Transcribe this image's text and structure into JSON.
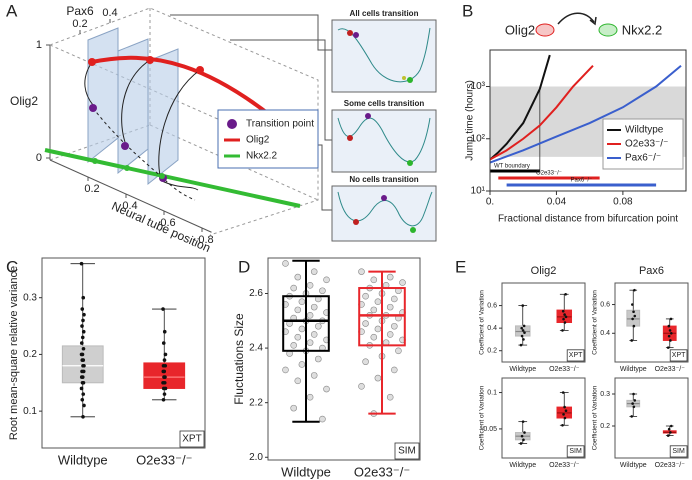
{
  "diagram": {
    "label": "A",
    "pax6_axis": {
      "title": "Pax6",
      "ticks": [
        0.2,
        0.4
      ]
    },
    "olig2_axis": {
      "title": "Olig2",
      "ticks": [
        0,
        1
      ]
    },
    "position_axis": {
      "title": "Neural tube position",
      "ticks": [
        0.2,
        0.4,
        0.6,
        0.8
      ]
    },
    "legend": [
      {
        "name": "Transition point",
        "color": "#6a1b8a"
      },
      {
        "name": "Olig2",
        "color": "#e0201f"
      },
      {
        "name": "Nkx2.2",
        "color": "#33bb33"
      }
    ],
    "insets": [
      "All cells transition",
      "Some cells transition",
      "No cells transition"
    ]
  },
  "chart_data": [
    {
      "type": "line",
      "label": "B",
      "header": {
        "from": "Olig2",
        "from_color": "#e0201f",
        "to": "Nkx2.2",
        "to_color": "#2db52d"
      },
      "xlabel": "Fractional distance from bifurcation point",
      "ylabel": "Jump time (hours)",
      "yscale": "log",
      "xlim": [
        0,
        0.118
      ],
      "ylim": [
        10,
        5000
      ],
      "xticks": [
        {
          "value": 0,
          "label": "0."
        },
        0.04,
        0.08
      ],
      "yticks": [
        {
          "value": 10,
          "label": "10¹"
        },
        {
          "value": 100,
          "label": "10²"
        },
        {
          "value": 1000,
          "label": "10³"
        }
      ],
      "band": [
        45,
        1000
      ],
      "band_color": "#d9d9d9",
      "legend": "lower right",
      "series": [
        {
          "name": "Wildtype",
          "color": "#111111",
          "x": [
            0,
            0.005,
            0.01,
            0.02,
            0.03,
            0.036
          ],
          "values": [
            40,
            55,
            80,
            200,
            900,
            4000
          ]
        },
        {
          "name": "O2e33⁻/⁻",
          "color": "#e0201f",
          "x": [
            0,
            0.01,
            0.02,
            0.03,
            0.04,
            0.05,
            0.062
          ],
          "values": [
            40,
            60,
            100,
            180,
            400,
            1000,
            2500
          ]
        },
        {
          "name": "Pax6⁻/⁻",
          "color": "#3a5fcd",
          "x": [
            0,
            0.02,
            0.04,
            0.06,
            0.08,
            0.1,
            0.115
          ],
          "values": [
            35,
            60,
            110,
            200,
            400,
            1000,
            2500
          ]
        }
      ],
      "ranges": [
        {
          "label": "WT boundary",
          "color": "#000000",
          "range": [
            0,
            0.03
          ]
        },
        {
          "label": "O2e33⁻/⁻",
          "color": "#e0201f",
          "range": [
            0.005,
            0.066
          ]
        },
        {
          "label": "Pax6⁻/⁻",
          "color": "#3a5fcd",
          "range": [
            0.01,
            0.1
          ]
        }
      ]
    },
    {
      "type": "box",
      "label": "C",
      "ylabel": "Root mean-square relative variance",
      "tag": "XPT",
      "ylim": [
        0.035,
        0.37
      ],
      "yticks": [
        0.1,
        0.2,
        0.3
      ],
      "categories": [
        "Wildtype",
        "O2e33⁻/⁻"
      ],
      "boxes": [
        {
          "min": 0.09,
          "q1": 0.15,
          "median": 0.18,
          "q3": 0.215,
          "max": 0.36,
          "color": "#bbbbbb",
          "fill": "#cfcfcf",
          "median_color": "#ffffff",
          "points": [
            0.36,
            0.3,
            0.28,
            0.27,
            0.26,
            0.25,
            0.24,
            0.23,
            0.22,
            0.21,
            0.2,
            0.2,
            0.19,
            0.19,
            0.18,
            0.18,
            0.17,
            0.17,
            0.16,
            0.16,
            0.15,
            0.15,
            0.14,
            0.13,
            0.12,
            0.11,
            0.09
          ]
        },
        {
          "min": 0.12,
          "q1": 0.14,
          "median": 0.16,
          "q3": 0.185,
          "max": 0.28,
          "color": "#e8262b",
          "fill": "#e8262b",
          "median_color": "#ff8080",
          "points": [
            0.28,
            0.24,
            0.22,
            0.2,
            0.19,
            0.18,
            0.18,
            0.17,
            0.17,
            0.16,
            0.16,
            0.15,
            0.15,
            0.14,
            0.14,
            0.13,
            0.12
          ]
        }
      ]
    },
    {
      "type": "box",
      "label": "D",
      "ylabel": "Fluctuations Size",
      "tag": "SIM",
      "ylim": [
        1.99,
        2.73
      ],
      "yticks": [
        {
          "value": 2,
          "label": "2.0"
        },
        2.2,
        2.4,
        2.6
      ],
      "categories": [
        "Wildtype",
        "O2e33⁻/⁻"
      ],
      "boxes": [
        {
          "min": 2.13,
          "q1": 2.39,
          "median": 2.5,
          "q3": 2.59,
          "max": 2.72,
          "color": "#000000",
          "fill": "none",
          "median_color": "#000000",
          "points": [
            2.71,
            2.68,
            2.66,
            2.65,
            2.63,
            2.62,
            2.61,
            2.6,
            2.59,
            2.58,
            2.57,
            2.56,
            2.55,
            2.54,
            2.53,
            2.52,
            2.51,
            2.5,
            2.5,
            2.49,
            2.48,
            2.47,
            2.46,
            2.45,
            2.44,
            2.43,
            2.42,
            2.41,
            2.4,
            2.39,
            2.38,
            2.36,
            2.34,
            2.32,
            2.3,
            2.28,
            2.25,
            2.22,
            2.18,
            2.14
          ]
        },
        {
          "min": 2.16,
          "q1": 2.41,
          "median": 2.52,
          "q3": 2.62,
          "max": 2.68,
          "color": "#e8262b",
          "fill": "none",
          "median_color": "#e8262b",
          "points": [
            2.68,
            2.66,
            2.65,
            2.64,
            2.63,
            2.62,
            2.61,
            2.6,
            2.59,
            2.58,
            2.57,
            2.56,
            2.55,
            2.54,
            2.53,
            2.52,
            2.52,
            2.51,
            2.5,
            2.49,
            2.48,
            2.47,
            2.46,
            2.45,
            2.44,
            2.43,
            2.42,
            2.41,
            2.39,
            2.37,
            2.35,
            2.32,
            2.29,
            2.26,
            2.22,
            2.16
          ]
        }
      ]
    },
    {
      "type": "box",
      "label": "E",
      "title": "Olig2",
      "title_color": "#e0201f",
      "ylabel": "Coefficient of Variation",
      "tag": "XPT",
      "ylim": [
        0.1,
        0.8
      ],
      "yticks": [
        0.2,
        0.4,
        0.6
      ],
      "categories": [
        "Wildtype",
        "O2e33⁻/⁻"
      ],
      "boxes": [
        {
          "min": 0.25,
          "q1": 0.33,
          "median": 0.37,
          "q3": 0.42,
          "max": 0.6,
          "color": "#bbbbbb",
          "fill": "#c8c8c8",
          "median_color": "#888888",
          "points": [
            0.25,
            0.3,
            0.33,
            0.36,
            0.38,
            0.4,
            0.42,
            0.6
          ]
        },
        {
          "min": 0.38,
          "q1": 0.45,
          "median": 0.5,
          "q3": 0.56,
          "max": 0.7,
          "color": "#e8262b",
          "fill": "#e8262b",
          "median_color": "#a01010",
          "points": [
            0.38,
            0.45,
            0.48,
            0.5,
            0.52,
            0.55,
            0.7
          ]
        }
      ]
    },
    {
      "type": "box",
      "title": "Pax6",
      "title_color": "#3a5fcd",
      "ylabel": "Coefficient of Variation",
      "tag": "XPT",
      "ylim": [
        0.2,
        0.75
      ],
      "yticks": [
        0.4,
        0.6
      ],
      "categories": [
        "Wildtype",
        "O2e33⁻/⁻"
      ],
      "boxes": [
        {
          "min": 0.35,
          "q1": 0.45,
          "median": 0.5,
          "q3": 0.56,
          "max": 0.7,
          "color": "#bbbbbb",
          "fill": "#c8c8c8",
          "median_color": "#888888",
          "points": [
            0.35,
            0.45,
            0.5,
            0.52,
            0.55,
            0.6,
            0.7
          ]
        },
        {
          "min": 0.3,
          "q1": 0.35,
          "median": 0.4,
          "q3": 0.45,
          "max": 0.5,
          "color": "#e8262b",
          "fill": "#e8262b",
          "median_color": "#a01010",
          "points": [
            0.3,
            0.35,
            0.38,
            0.4,
            0.42,
            0.45,
            0.5
          ]
        }
      ]
    },
    {
      "type": "box",
      "ylabel": "Coefficient of Variation",
      "tag": "SIM",
      "ylim": [
        0.01,
        0.12
      ],
      "yticks": [
        0.05,
        0.1
      ],
      "categories": [
        "Wildtype",
        "O2e33⁻/⁻"
      ],
      "boxes": [
        {
          "min": 0.03,
          "q1": 0.035,
          "median": 0.04,
          "q3": 0.045,
          "max": 0.06,
          "color": "#bbbbbb",
          "fill": "#c8c8c8",
          "median_color": "#888888",
          "points": [
            0.03,
            0.035,
            0.04,
            0.045,
            0.06
          ]
        },
        {
          "min": 0.055,
          "q1": 0.065,
          "median": 0.072,
          "q3": 0.08,
          "max": 0.1,
          "color": "#e8262b",
          "fill": "#e8262b",
          "median_color": "#a01010",
          "points": [
            0.055,
            0.065,
            0.07,
            0.075,
            0.08,
            0.1
          ]
        }
      ]
    },
    {
      "type": "box",
      "ylabel": "Coefficient of Variation",
      "tag": "SIM",
      "ylim": [
        0.1,
        0.35
      ],
      "yticks": [
        0.2,
        0.3
      ],
      "categories": [
        "Wildtype",
        "O2e33⁻/⁻"
      ],
      "boxes": [
        {
          "min": 0.23,
          "q1": 0.26,
          "median": 0.27,
          "q3": 0.28,
          "max": 0.3,
          "color": "#bbbbbb",
          "fill": "#c8c8c8",
          "median_color": "#888888",
          "points": [
            0.23,
            0.26,
            0.27,
            0.28,
            0.3
          ]
        },
        {
          "min": 0.17,
          "q1": 0.178,
          "median": 0.18,
          "q3": 0.185,
          "max": 0.2,
          "color": "#e8262b",
          "fill": "#e8262b",
          "median_color": "#a01010",
          "points": [
            0.17,
            0.18,
            0.19,
            0.2
          ]
        }
      ]
    }
  ]
}
